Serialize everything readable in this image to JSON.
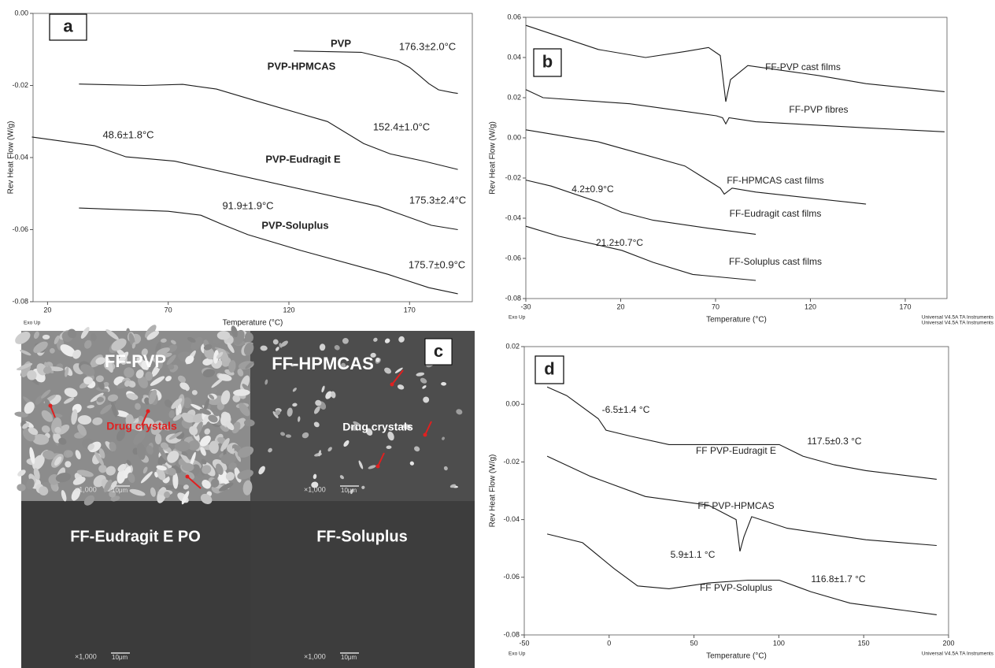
{
  "chart_data": [
    {
      "type": "line",
      "panel_label": "a",
      "xlabel": "Temperature (°C)",
      "ylabel": "Rev Heat Flow (W/g)",
      "footer_left": "Exo Up",
      "footer_right": "Universal V4.5A TA Instruments",
      "color": "#1a1a1a",
      "xlim": [
        14,
        196
      ],
      "ylim": [
        -0.08,
        0
      ],
      "xticks": [
        20,
        70,
        120,
        170
      ],
      "yticks": [
        {
          "value": 0,
          "label": "0.00"
        },
        -0.02,
        -0.04,
        -0.06,
        -0.08
      ],
      "series": [
        {
          "name": "PVP",
          "x": [
            122,
            150,
            165,
            170,
            174,
            178,
            182,
            188,
            190
          ],
          "values": [
            -0.0104,
            -0.0108,
            -0.0132,
            -0.015,
            -0.0172,
            -0.0195,
            -0.0212,
            -0.022,
            -0.0222
          ]
        },
        {
          "name": "PVP-HPMCAS",
          "x": [
            33,
            60,
            76,
            90,
            106,
            136,
            151,
            162,
            176,
            190
          ],
          "values": [
            -0.0196,
            -0.02,
            -0.0197,
            -0.021,
            -0.0242,
            -0.03,
            -0.0361,
            -0.039,
            -0.041,
            -0.0433
          ]
        },
        {
          "name": "PVP-Eudragit E",
          "x": [
            13.5,
            39.4,
            52.5,
            72.7,
            157,
            179,
            190
          ],
          "values": [
            -0.0343,
            -0.0367,
            -0.0398,
            -0.041,
            -0.0535,
            -0.0588,
            -0.06
          ]
        },
        {
          "name": "PVP-Soluplus",
          "x": [
            33,
            70,
            83.5,
            92.6,
            103,
            125,
            161,
            178,
            190
          ],
          "values": [
            -0.054,
            -0.0549,
            -0.056,
            -0.0586,
            -0.0614,
            -0.0658,
            -0.0724,
            -0.0761,
            -0.0778
          ]
        }
      ],
      "annotations": [
        "176.3±2.0°C",
        "152.4±1.0°C",
        "48.6±1.8°C",
        "175.3±2.4°C",
        "91.9±1.9°C",
        "175.7±0.9°C"
      ]
    },
    {
      "type": "line",
      "panel_label": "b",
      "xlabel": "Temperature (°C)",
      "ylabel": "Rev Heat Flow (W/g)",
      "footer_left": "Exo Up",
      "footer_right": "Universal V4.5A TA Instruments",
      "color": "#1a1a1a",
      "xlim": [
        -30,
        192
      ],
      "ylim": [
        -0.08,
        0.06
      ],
      "xticks": [
        -30,
        20,
        70,
        120,
        170
      ],
      "yticks": [
        0.06,
        0.04,
        0.02,
        {
          "value": 0,
          "label": "0.00"
        },
        -0.02,
        -0.04,
        -0.06,
        -0.08
      ],
      "series": [
        {
          "name": "FF-PVP cast films",
          "x": [
            -30,
            8.2,
            33.1,
            53.8,
            66.3,
            72.5,
            75.4,
            77.9,
            87,
            124.4,
            149.3,
            190.7
          ],
          "values": [
            0.056,
            0.044,
            0.04,
            0.043,
            0.045,
            0.041,
            0.018,
            0.029,
            0.036,
            0.031,
            0.027,
            0.023
          ]
        },
        {
          "name": "FF-PVP fibres",
          "x": [
            -30,
            -20.9,
            24.8,
            70.4,
            73.7,
            75.4,
            77.1,
            91.2,
            149.3,
            190.7
          ],
          "values": [
            0.024,
            0.02,
            0.017,
            0.011,
            0.01,
            0.007,
            0.01,
            0.008,
            0.005,
            0.003
          ]
        },
        {
          "name": "FF-HPMCAS cast films",
          "x": [
            -30,
            8.2,
            53.8,
            72.5,
            74.6,
            78.7,
            91.2,
            149.3
          ],
          "values": [
            0.004,
            -0.002,
            -0.014,
            -0.025,
            -0.028,
            -0.025,
            -0.027,
            -0.033
          ]
        },
        {
          "name": "FF-Eudragit cast films",
          "x": [
            -30,
            -16.7,
            8.2,
            20.6,
            37.2,
            66.3,
            91.2
          ],
          "values": [
            -0.021,
            -0.024,
            -0.032,
            -0.037,
            -0.041,
            -0.045,
            -0.048
          ]
        },
        {
          "name": "FF-Soluplus cast films",
          "x": [
            -30,
            -12.6,
            20.6,
            37.2,
            58,
            91.2
          ],
          "values": [
            -0.044,
            -0.049,
            -0.056,
            -0.062,
            -0.068,
            -0.071
          ]
        }
      ],
      "annotations": [
        "4.2±0.9°C",
        "21.2±0.7°C"
      ]
    },
    {
      "type": "line",
      "panel_label": "d",
      "xlabel": "Temperature (°C)",
      "ylabel": "Rev Heat Flow (W/g)",
      "footer_left": "Exo Up",
      "footer_right": "Universal V4.5A TA Instruments",
      "color": "#1a1a1a",
      "xlim": [
        -50,
        200
      ],
      "ylim": [
        -0.08,
        0.02
      ],
      "xticks": [
        -50,
        0,
        50,
        100,
        150,
        200
      ],
      "yticks": [
        0.02,
        {
          "value": 0,
          "label": "0.00"
        },
        -0.02,
        -0.04,
        -0.06,
        -0.08
      ],
      "series": [
        {
          "name": "FF PVP-Eudragit E",
          "x": [
            -36.5,
            -25,
            -6.4,
            -1.8,
            12.2,
            35.3,
            67.8,
            100.3,
            114.2,
            132.7,
            151.3,
            193
          ],
          "values": [
            0.006,
            0.003,
            -0.005,
            -0.009,
            -0.011,
            -0.014,
            -0.014,
            -0.014,
            -0.018,
            -0.021,
            -0.023,
            -0.026
          ]
        },
        {
          "name": "FF PVP-HPMCAS",
          "x": [
            -36.5,
            -11,
            21.4,
            58.5,
            74.8,
            77.1,
            79.4,
            84,
            104.9,
            151.3,
            193
          ],
          "values": [
            -0.018,
            -0.025,
            -0.032,
            -0.035,
            -0.04,
            -0.051,
            -0.046,
            -0.039,
            -0.043,
            -0.047,
            -0.049
          ]
        },
        {
          "name": "FF PVP-Soluplus",
          "x": [
            -36.5,
            -15.7,
            2.9,
            16.8,
            35.3,
            58.5,
            81.7,
            100.3,
            118.8,
            142,
            193
          ],
          "values": [
            -0.045,
            -0.048,
            -0.057,
            -0.063,
            -0.064,
            -0.062,
            -0.061,
            -0.061,
            -0.065,
            -0.069,
            -0.073
          ]
        }
      ],
      "annotations": [
        "-6.5±1.4 °C",
        "117.5±0.3 °C",
        "5.9±1.1 °C",
        "116.8±1.7 °C"
      ]
    }
  ],
  "micrographs": {
    "panel_label": "c",
    "panes": [
      {
        "title": "FF-PVP",
        "annotation": "Drug crystals",
        "magnification": "×1,000",
        "scale": "10μm"
      },
      {
        "title": "FF-HPMCAS",
        "annotation": "Drug crystals",
        "magnification": "×1,000",
        "scale": "10μm"
      },
      {
        "title": "FF-Eudragit E PO",
        "magnification": "×1,000",
        "scale": "10μm"
      },
      {
        "title": "FF-Soluplus",
        "magnification": "×1,000",
        "scale": "10μm"
      }
    ]
  }
}
